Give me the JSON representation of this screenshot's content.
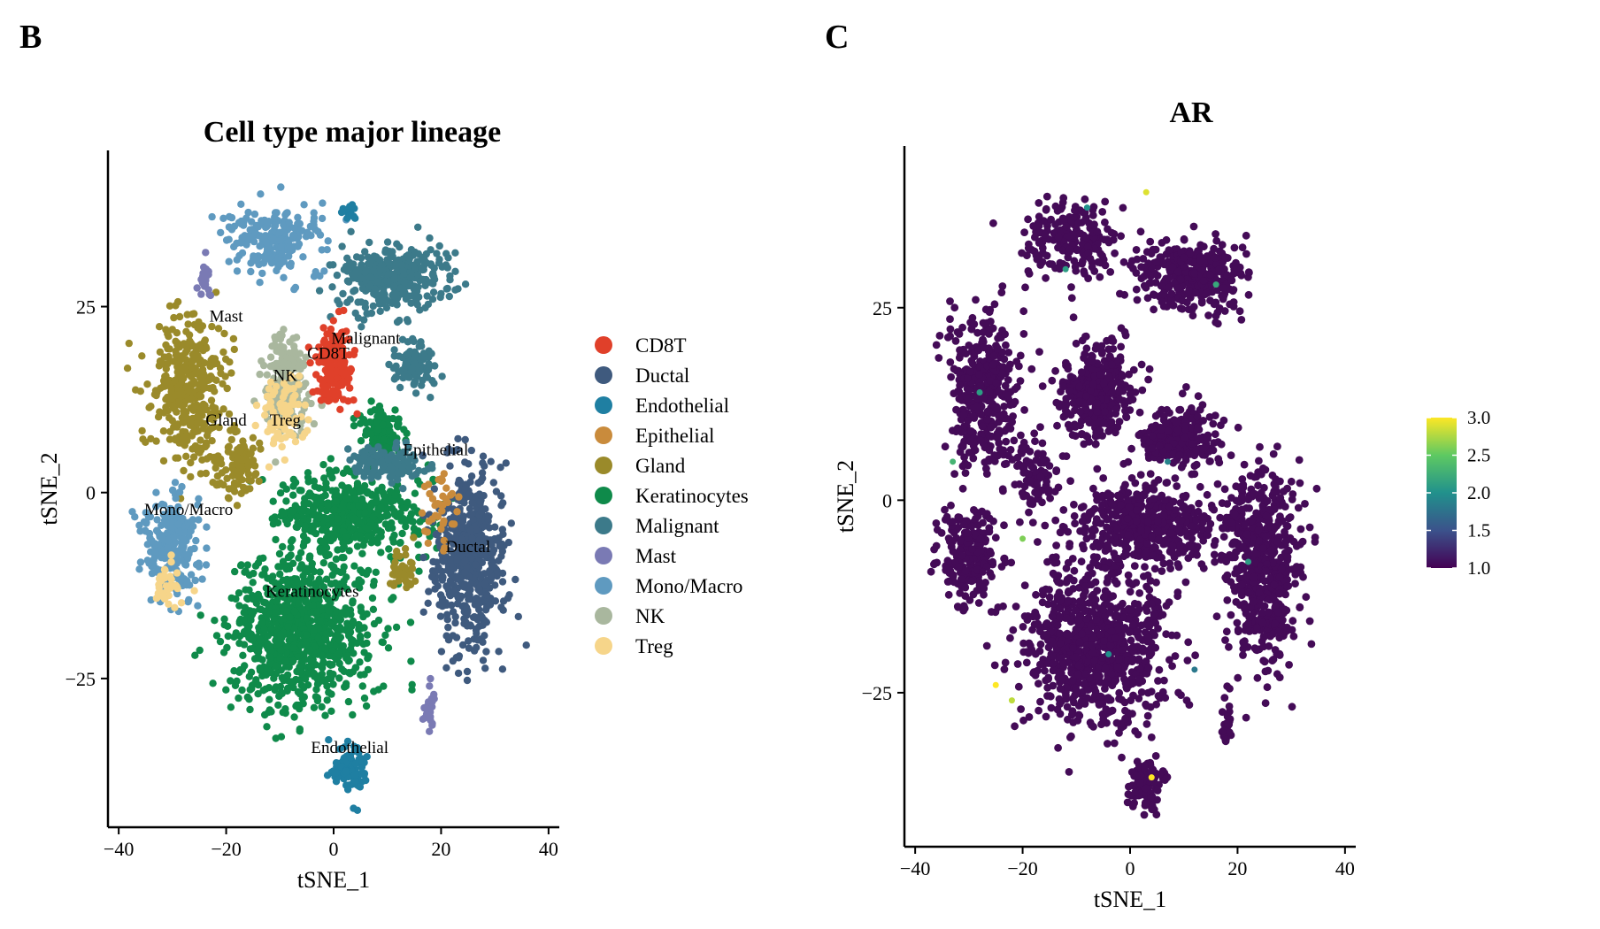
{
  "panels": {
    "B": {
      "letter": "B",
      "chart_data": {
        "type": "scatter",
        "title": "Cell type major lineage",
        "xlabel": "tSNE_1",
        "ylabel": "tSNE_2",
        "xlim": [
          -42,
          42
        ],
        "ylim": [
          -45,
          46
        ],
        "xticks": [
          -40,
          -20,
          0,
          20,
          40
        ],
        "xtick_labels": [
          "−40",
          "−20",
          "0",
          "20",
          "40"
        ],
        "yticks": [
          -25,
          0,
          25
        ],
        "ytick_labels": [
          "−25",
          "0",
          "25"
        ],
        "grid": false,
        "legend_position": "right",
        "legend": [
          {
            "name": "CD8T",
            "color": "#e0402a"
          },
          {
            "name": "Ductal",
            "color": "#3f5a7e"
          },
          {
            "name": "Endothelial",
            "color": "#1f7fa2"
          },
          {
            "name": "Epithelial",
            "color": "#c98b3c"
          },
          {
            "name": "Gland",
            "color": "#9a8a2a"
          },
          {
            "name": "Keratinocytes",
            "color": "#0f8a4a"
          },
          {
            "name": "Malignant",
            "color": "#3c7a8a"
          },
          {
            "name": "Mast",
            "color": "#7a7ab4"
          },
          {
            "name": "Mono/Macro",
            "color": "#5f9ac0"
          },
          {
            "name": "NK",
            "color": "#a9b79e"
          },
          {
            "name": "Treg",
            "color": "#f6d58a"
          }
        ],
        "annotations": [
          {
            "text": "Mast",
            "x": -20,
            "y": 23
          },
          {
            "text": "Malignant",
            "x": 6,
            "y": 20
          },
          {
            "text": "CD8T",
            "x": -1,
            "y": 18
          },
          {
            "text": "NK",
            "x": -9,
            "y": 15
          },
          {
            "text": "Gland",
            "x": -20,
            "y": 9
          },
          {
            "text": "Treg",
            "x": -9,
            "y": 9
          },
          {
            "text": "Epithelial",
            "x": 19,
            "y": 5
          },
          {
            "text": "Mono/Macro",
            "x": -27,
            "y": -3
          },
          {
            "text": "Ductal",
            "x": 25,
            "y": -8
          },
          {
            "text": "Keratinocytes",
            "x": -4,
            "y": -14
          },
          {
            "text": "Endothelial",
            "x": 3,
            "y": -35
          }
        ],
        "clusters": [
          {
            "type": "Keratinocytes",
            "cx": -6,
            "cy": -19,
            "sx": 12,
            "sy": 9,
            "n": 900
          },
          {
            "type": "Keratinocytes",
            "cx": 3,
            "cy": -3,
            "sx": 13,
            "sy": 5,
            "n": 500
          },
          {
            "type": "Keratinocytes",
            "cx": 9,
            "cy": 8,
            "sx": 4,
            "sy": 3,
            "n": 120
          },
          {
            "type": "Malignant",
            "cx": 10,
            "cy": 4,
            "sx": 6,
            "sy": 2,
            "n": 160
          },
          {
            "type": "Malignant",
            "cx": 11,
            "cy": 29,
            "sx": 9,
            "sy": 4,
            "n": 350
          },
          {
            "type": "Malignant",
            "cx": 15,
            "cy": 17,
            "sx": 4,
            "sy": 3,
            "n": 100
          },
          {
            "type": "Ductal",
            "cx": 25,
            "cy": -9,
            "sx": 6,
            "sy": 11,
            "n": 550
          },
          {
            "type": "Gland",
            "cx": -27,
            "cy": 14,
            "sx": 6,
            "sy": 9,
            "n": 400
          },
          {
            "type": "Gland",
            "cx": -18,
            "cy": 3,
            "sx": 4,
            "sy": 4,
            "n": 90
          },
          {
            "type": "Gland",
            "cx": 13,
            "cy": -10,
            "sx": 2,
            "sy": 3,
            "n": 40
          },
          {
            "type": "Mono/Macro",
            "cx": -30,
            "cy": -7,
            "sx": 5,
            "sy": 6,
            "n": 220
          },
          {
            "type": "Mono/Macro",
            "cx": -11,
            "cy": 34,
            "sx": 8,
            "sy": 4,
            "n": 220
          },
          {
            "type": "NK",
            "cx": -9,
            "cy": 15,
            "sx": 4,
            "sy": 6,
            "n": 220
          },
          {
            "type": "CD8T",
            "cx": 0,
            "cy": 17,
            "sx": 3,
            "sy": 5,
            "n": 180
          },
          {
            "type": "Treg",
            "cx": -9,
            "cy": 10,
            "sx": 4,
            "sy": 5,
            "n": 90
          },
          {
            "type": "Treg",
            "cx": -31,
            "cy": -13,
            "sx": 2,
            "sy": 3,
            "n": 40
          },
          {
            "type": "Endothelial",
            "cx": 3,
            "cy": -37,
            "sx": 3,
            "sy": 3,
            "n": 110
          },
          {
            "type": "Endothelial",
            "cx": 3,
            "cy": 38,
            "sx": 1,
            "sy": 1,
            "n": 20
          },
          {
            "type": "Epithelial",
            "cx": 20,
            "cy": -2,
            "sx": 3,
            "sy": 4,
            "n": 40
          },
          {
            "type": "Mast",
            "cx": -24,
            "cy": 29,
            "sx": 1,
            "sy": 2,
            "n": 25
          },
          {
            "type": "Mast",
            "cx": 18,
            "cy": -29,
            "sx": 1,
            "sy": 3,
            "n": 25
          }
        ]
      }
    },
    "C": {
      "letter": "C",
      "chart_data": {
        "type": "scatter",
        "title": "AR",
        "xlabel": "tSNE_1",
        "ylabel": "tSNE_2",
        "xlim": [
          -42,
          42
        ],
        "ylim": [
          -45,
          46
        ],
        "xticks": [
          -40,
          -20,
          0,
          20,
          40
        ],
        "xtick_labels": [
          "−40",
          "−20",
          "0",
          "20",
          "40"
        ],
        "yticks": [
          -25,
          0,
          25
        ],
        "ytick_labels": [
          "−25",
          "0",
          "25"
        ],
        "grid": false,
        "base_color": "#440b57",
        "colorbar": {
          "min": 1.0,
          "max": 3.0,
          "ticks": [
            1.0,
            1.5,
            2.0,
            2.5,
            3.0
          ],
          "tick_labels": [
            "1.0",
            "1.5",
            "2.0",
            "2.5",
            "3.0"
          ],
          "colors": [
            "#440154",
            "#3b528b",
            "#21918c",
            "#5ec962",
            "#fde725"
          ]
        },
        "clusters": [
          {
            "cx": -6,
            "cy": -19,
            "sx": 12,
            "sy": 9,
            "n": 900
          },
          {
            "cx": 3,
            "cy": -3,
            "sx": 13,
            "sy": 5,
            "n": 500
          },
          {
            "cx": 9,
            "cy": 8,
            "sx": 6,
            "sy": 3,
            "n": 250
          },
          {
            "cx": 11,
            "cy": 29,
            "sx": 9,
            "sy": 4,
            "n": 350
          },
          {
            "cx": 25,
            "cy": -9,
            "sx": 6,
            "sy": 11,
            "n": 550
          },
          {
            "cx": -27,
            "cy": 14,
            "sx": 6,
            "sy": 9,
            "n": 400
          },
          {
            "cx": -18,
            "cy": 3,
            "sx": 4,
            "sy": 4,
            "n": 90
          },
          {
            "cx": -30,
            "cy": -7,
            "sx": 5,
            "sy": 6,
            "n": 220
          },
          {
            "cx": -11,
            "cy": 34,
            "sx": 8,
            "sy": 4,
            "n": 220
          },
          {
            "cx": -6,
            "cy": 14,
            "sx": 6,
            "sy": 6,
            "n": 350
          },
          {
            "cx": 3,
            "cy": -37,
            "sx": 3,
            "sy": 3,
            "n": 110
          },
          {
            "cx": 20,
            "cy": -2,
            "sx": 3,
            "sy": 4,
            "n": 60
          },
          {
            "cx": 18,
            "cy": -29,
            "sx": 1,
            "sy": 3,
            "n": 25
          }
        ],
        "high_points": [
          {
            "x": -22,
            "y": -26,
            "v": 2.8
          },
          {
            "x": -25,
            "y": -24,
            "v": 3.0
          },
          {
            "x": -28,
            "y": 14,
            "v": 2.1
          },
          {
            "x": -20,
            "y": -5,
            "v": 2.6
          },
          {
            "x": 4,
            "y": -36,
            "v": 3.0
          },
          {
            "x": 3,
            "y": 40,
            "v": 2.9
          },
          {
            "x": -8,
            "y": 38,
            "v": 2.0
          },
          {
            "x": 7,
            "y": 5,
            "v": 1.9
          },
          {
            "x": 16,
            "y": 28,
            "v": 2.2
          },
          {
            "x": -4,
            "y": -20,
            "v": 2.0
          },
          {
            "x": 22,
            "y": -8,
            "v": 2.1
          },
          {
            "x": 12,
            "y": -22,
            "v": 1.8
          },
          {
            "x": -33,
            "y": 5,
            "v": 2.3
          },
          {
            "x": -12,
            "y": 30,
            "v": 2.1
          }
        ]
      }
    }
  }
}
